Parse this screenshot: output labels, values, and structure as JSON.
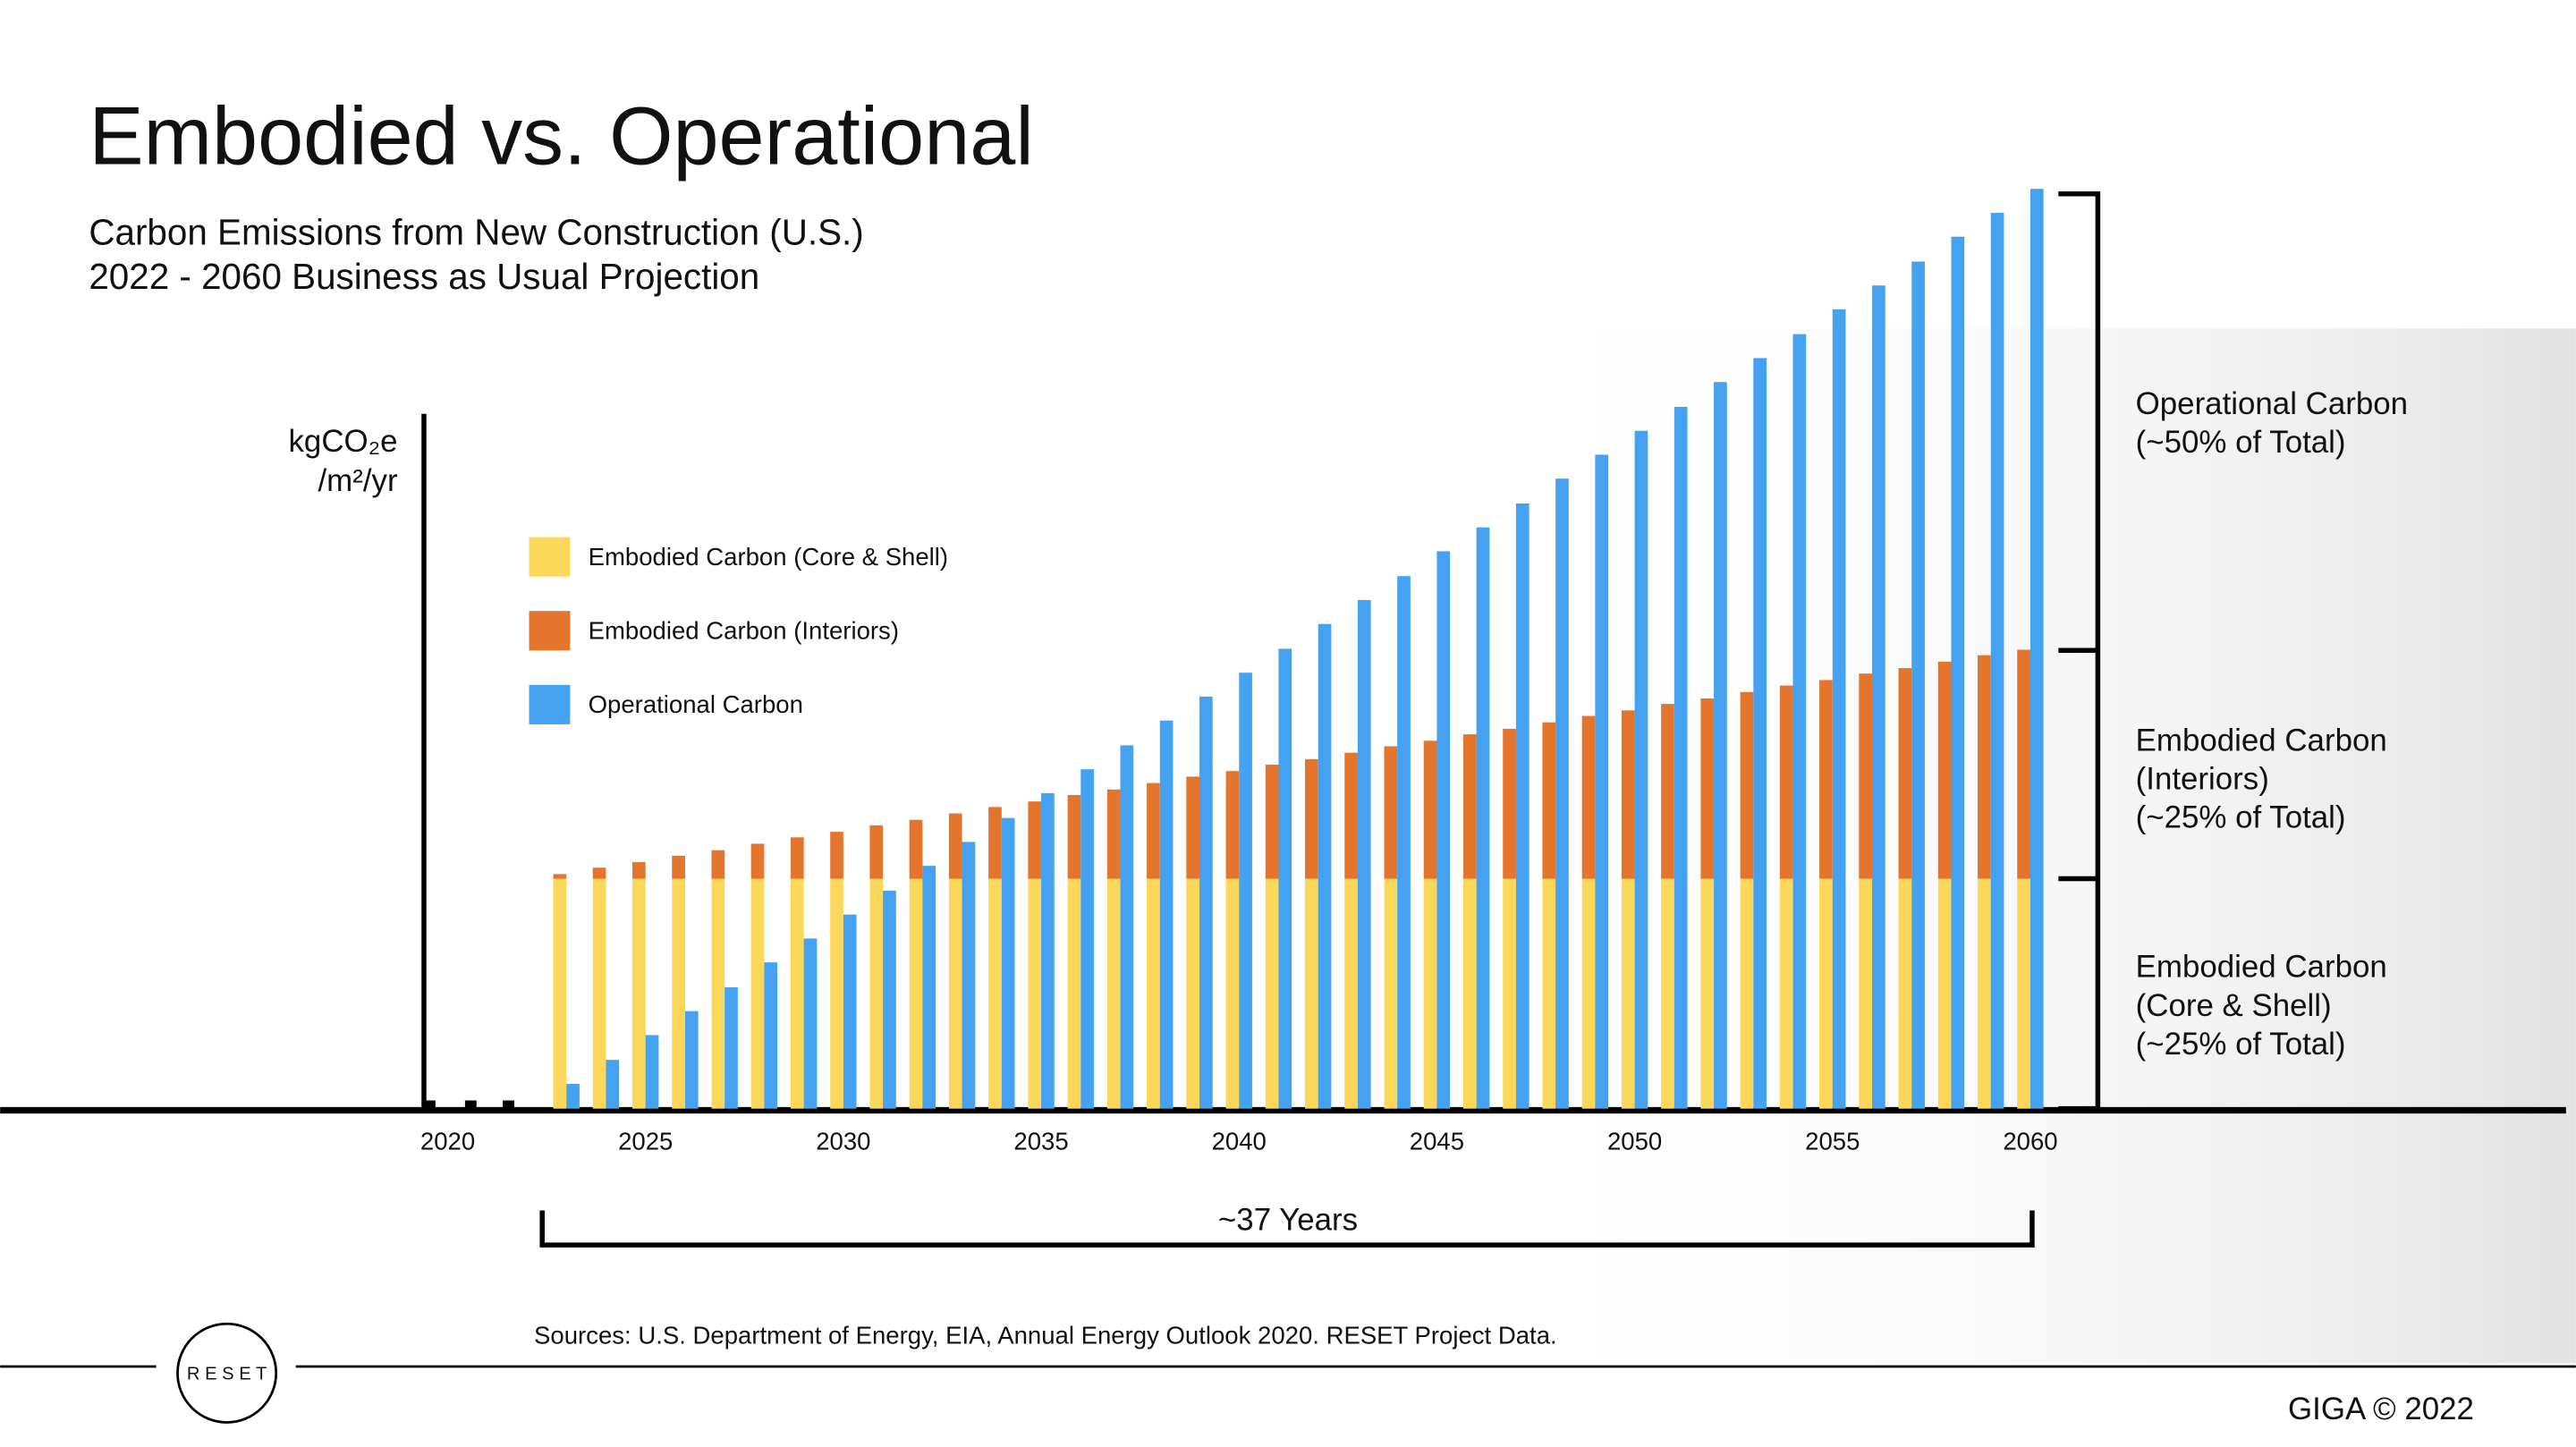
{
  "chart_data": {
    "type": "bar",
    "title": "Embodied vs. Operational",
    "subtitle": [
      "Carbon Emissions from New Construction (U.S.)",
      "2022 - 2060 Business as Usual Projection"
    ],
    "y_label": [
      "kgCO₂e",
      "/m²/yr"
    ],
    "x": [
      2023,
      2024,
      2025,
      2026,
      2027,
      2028,
      2029,
      2030,
      2031,
      2032,
      2033,
      2034,
      2035,
      2036,
      2037,
      2038,
      2039,
      2040,
      2041,
      2042,
      2043,
      2044,
      2045,
      2046,
      2047,
      2048,
      2049,
      2050,
      2051,
      2052,
      2053,
      2054,
      2055,
      2056,
      2057,
      2058,
      2059,
      2060
    ],
    "series": [
      {
        "name": "Embodied Carbon (Core & Shell)",
        "color": "#fbd85a",
        "stack": 0,
        "values": [
          25,
          25,
          25,
          25,
          25,
          25,
          25,
          25,
          25,
          25,
          25,
          25,
          25,
          25,
          25,
          25,
          25,
          25,
          25,
          25,
          25,
          25,
          25,
          25,
          25,
          25,
          25,
          25,
          25,
          25,
          25,
          25,
          25,
          25,
          25,
          25,
          25,
          25
        ]
      },
      {
        "name": "Embodied Carbon (Interiors)",
        "color": "#e4752d",
        "stack": 0,
        "values": [
          0.5,
          1.2,
          1.8,
          2.5,
          3.1,
          3.8,
          4.5,
          5.1,
          5.8,
          6.4,
          7.1,
          7.8,
          8.4,
          9.1,
          9.7,
          10.4,
          11.1,
          11.7,
          12.4,
          13.0,
          13.7,
          14.4,
          15.0,
          15.7,
          16.3,
          17.0,
          17.7,
          18.3,
          19.0,
          19.6,
          20.3,
          21.0,
          21.6,
          22.3,
          22.9,
          23.6,
          24.3,
          24.9
        ]
      },
      {
        "name": "Operational Carbon",
        "color": "#45a2f1",
        "stack": 1,
        "values": [
          2.7,
          5.3,
          8.0,
          10.6,
          13.2,
          15.9,
          18.5,
          21.1,
          23.7,
          26.4,
          29.0,
          31.6,
          34.3,
          36.9,
          39.5,
          42.2,
          44.8,
          47.4,
          50.0,
          52.7,
          55.3,
          57.9,
          60.6,
          63.2,
          65.8,
          68.5,
          71.1,
          73.7,
          76.3,
          79.0,
          81.6,
          84.2,
          86.9,
          89.5,
          92.1,
          94.8,
          97.4,
          100.0
        ]
      }
    ],
    "xlim": [
      2019.4,
      2061
    ],
    "xticks": [
      2020,
      2025,
      2030,
      2035,
      2040,
      2045,
      2050,
      2055,
      2060
    ],
    "ylim": [
      0,
      100
    ],
    "grid": false,
    "annotations": [
      {
        "lines": [
          "Operational Carbon",
          "(~50% of Total)"
        ]
      },
      {
        "lines": [
          "Embodied Carbon",
          "(Interiors)",
          "(~25% of Total)"
        ]
      },
      {
        "lines": [
          "Embodied Carbon",
          "(Core & Shell)",
          "(~25% of Total)"
        ]
      }
    ],
    "span_label": "~37 Years",
    "source": "Sources: U.S. Department of Energy, EIA, Annual Energy Outlook 2020. RESET Project Data.",
    "logo": "R E S E T",
    "copyright": "GIGA © 2022"
  }
}
